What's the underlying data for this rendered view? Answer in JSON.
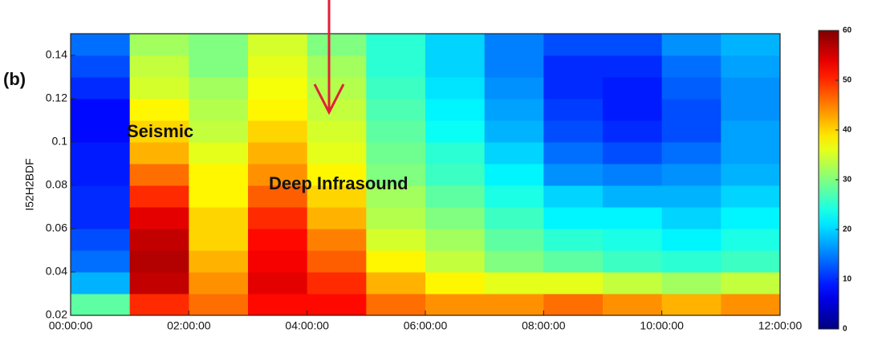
{
  "chart_data": {
    "type": "heatmap",
    "panel_label": "(b)",
    "y_label": "I52H2BDF",
    "annotations": [
      "Seismic",
      "Deep Infrasound"
    ],
    "x": [
      0.5,
      1.5,
      2.5,
      3.5,
      4.5,
      5.5,
      6.5,
      7.5,
      8.5,
      9.5,
      10.5,
      11.5
    ],
    "y": [
      0.025,
      0.035,
      0.045,
      0.055,
      0.065,
      0.075,
      0.085,
      0.095,
      0.105,
      0.115,
      0.125,
      0.135,
      0.145
    ],
    "values": [
      [
        28,
        18,
        14,
        12,
        10,
        10,
        9,
        9,
        8,
        8,
        10,
        12,
        14
      ],
      [
        50,
        56,
        57,
        56,
        54,
        50,
        46,
        42,
        40,
        38,
        35,
        34,
        32
      ],
      [
        46,
        44,
        42,
        40,
        40,
        38,
        38,
        36,
        34,
        33,
        32,
        30,
        30
      ],
      [
        52,
        54,
        53,
        52,
        50,
        47,
        44,
        42,
        40,
        38,
        37,
        36,
        35
      ],
      [
        52,
        50,
        47,
        45,
        42,
        40,
        38,
        36,
        35,
        34,
        33,
        32,
        30
      ],
      [
        46,
        42,
        38,
        35,
        33,
        32,
        30,
        29,
        28,
        27,
        26,
        25,
        25
      ],
      [
        44,
        38,
        34,
        32,
        30,
        28,
        26,
        25,
        23,
        22,
        21,
        20,
        20
      ],
      [
        44,
        36,
        30,
        28,
        26,
        24,
        22,
        20,
        18,
        17,
        16,
        15,
        15
      ],
      [
        46,
        36,
        28,
        25,
        22,
        20,
        16,
        14,
        12,
        11,
        10,
        10,
        12
      ],
      [
        44,
        34,
        26,
        24,
        22,
        18,
        15,
        12,
        10,
        9,
        9,
        10,
        12
      ],
      [
        42,
        32,
        25,
        22,
        20,
        18,
        16,
        14,
        12,
        12,
        13,
        14,
        16
      ],
      [
        44,
        34,
        26,
        24,
        22,
        20,
        18,
        17,
        17,
        16,
        16,
        17,
        18
      ]
    ],
    "xlim": [
      0,
      12
    ],
    "xticks": [
      {
        "value": 0,
        "label": "00:00:00"
      },
      {
        "value": 2,
        "label": "02:00:00"
      },
      {
        "value": 4,
        "label": "04:00:00"
      },
      {
        "value": 6,
        "label": "06:00:00"
      },
      {
        "value": 8,
        "label": "08:00:00"
      },
      {
        "value": 10,
        "label": "10:00:00"
      },
      {
        "value": 12,
        "label": "12:00:00"
      }
    ],
    "ylim": [
      0.02,
      0.15
    ],
    "yticks": [
      0.02,
      0.04,
      0.06,
      0.08,
      0.1,
      0.12,
      0.14
    ],
    "clim": [
      0,
      60
    ],
    "cticks": [
      0,
      10,
      20,
      30,
      40,
      50,
      60
    ],
    "colormap": "jet"
  }
}
